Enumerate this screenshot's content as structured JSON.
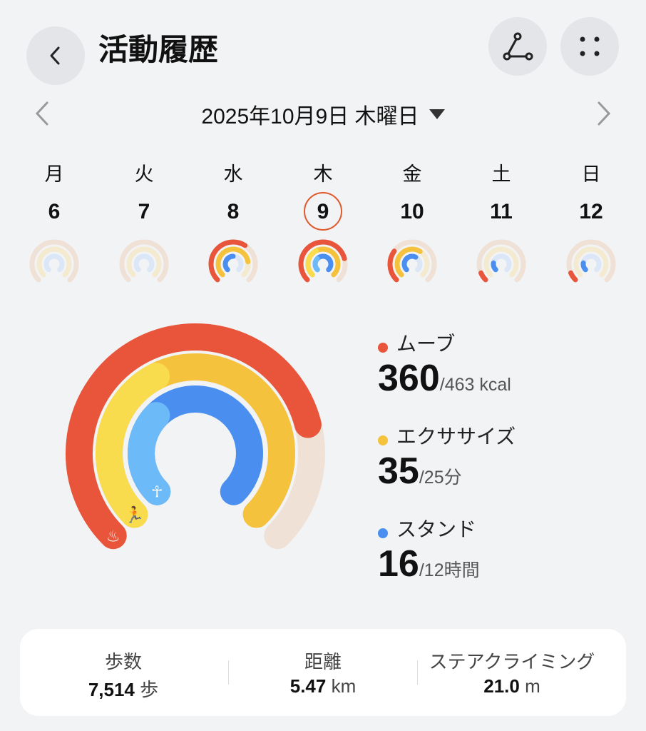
{
  "header": {
    "title": "活動履歴",
    "back_icon": "chevron-left-icon",
    "share_icon": "share-nodes-icon",
    "more_icon": "grid-dots-icon"
  },
  "date_nav": {
    "label": "2025年10月9日 木曜日",
    "prev_icon": "chevron-left-icon",
    "next_icon": "chevron-right-icon",
    "dropdown_icon": "caret-down-icon"
  },
  "week": [
    {
      "dow": "月",
      "num": "6",
      "move": 0,
      "exercise": 0,
      "stand": 0,
      "selected": false
    },
    {
      "dow": "火",
      "num": "7",
      "move": 0,
      "exercise": 0,
      "stand": 0,
      "selected": false
    },
    {
      "dow": "水",
      "num": "8",
      "move": 0.62,
      "exercise": 0.8,
      "stand": 0.5,
      "selected": false
    },
    {
      "dow": "木",
      "num": "9",
      "move": 0.78,
      "exercise": 1.4,
      "stand": 1.33,
      "selected": true
    },
    {
      "dow": "金",
      "num": "10",
      "move": 0.3,
      "exercise": 0.62,
      "stand": 0.6,
      "selected": false
    },
    {
      "dow": "土",
      "num": "11",
      "move": 0.08,
      "exercise": 0,
      "stand": 0.2,
      "selected": false
    },
    {
      "dow": "日",
      "num": "12",
      "move": 0.08,
      "exercise": 0,
      "stand": 0.2,
      "selected": false
    }
  ],
  "rings": {
    "move": {
      "label": "ムーブ",
      "value": "360",
      "goal": "/463 kcal",
      "color": "#e8553a",
      "icon": "flame-icon"
    },
    "exercise": {
      "label": "エクササイズ",
      "value": "35",
      "goal": "/25分",
      "color": "#f5c23e",
      "icon": "running-icon"
    },
    "stand": {
      "label": "スタンド",
      "value": "16",
      "goal": "/12時間",
      "color": "#4a8ff0",
      "icon": "standing-person-icon"
    }
  },
  "stats": [
    {
      "label": "歩数",
      "value": "7,514",
      "unit": "歩"
    },
    {
      "label": "距離",
      "value": "5.47",
      "unit": "km"
    },
    {
      "label": "ステアクライミング",
      "value": "21.0",
      "unit": "m"
    }
  ]
}
